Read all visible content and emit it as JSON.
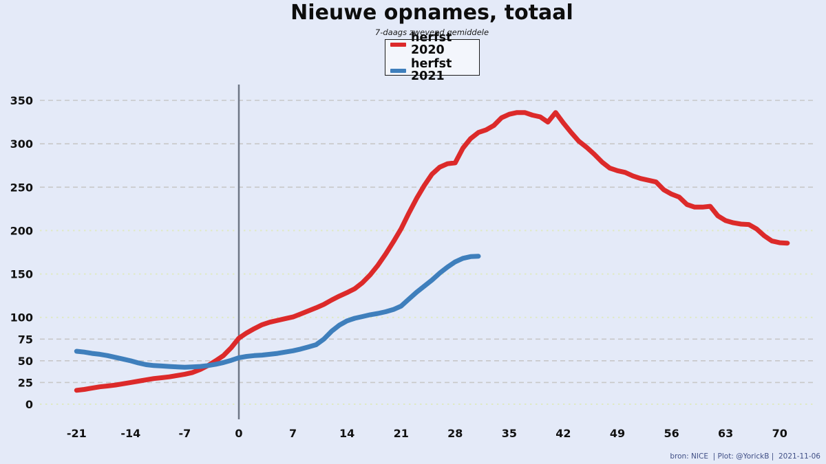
{
  "figure": {
    "title": "Nieuwe opnames, totaal",
    "subtitle": "7-daags zwevend gemiddele",
    "footer": "bron: NICE  | Plot: @YorickB |  2021-11-06",
    "background_color": "#e4eaf8"
  },
  "legend": {
    "position": "top-center",
    "items": [
      {
        "label": "herfst 2020",
        "color": "#dc2a2a"
      },
      {
        "label": "herfst 2021",
        "color": "#3f7fbc"
      }
    ]
  },
  "chart_data": {
    "type": "line",
    "title": "Nieuwe opnames, totaal",
    "subtitle": "7-daags zwevend gemiddele",
    "xlabel": "",
    "ylabel": "",
    "grid": true,
    "legend_position": "top-center",
    "legend_entries": [
      "herfst 2020",
      "herfst 2021"
    ],
    "xlim": [
      -25.7,
      75.1
    ],
    "ylim": [
      0,
      368
    ],
    "xticks": [
      -21,
      -14,
      -7,
      0,
      7,
      14,
      21,
      28,
      35,
      42,
      49,
      56,
      63,
      70
    ],
    "yticks": [
      0,
      25,
      50,
      75,
      100,
      150,
      200,
      250,
      300,
      350
    ],
    "highlight_gridlines": [
      0,
      100,
      150,
      200
    ],
    "zero_vline_x": 0,
    "series": [
      {
        "name": "herfst 2020",
        "color": "#dc2a2a",
        "x": [
          -21,
          -20,
          -19,
          -18,
          -17,
          -16,
          -15,
          -14,
          -13,
          -12,
          -11,
          -10,
          -9,
          -8,
          -7,
          -6,
          -5,
          -4,
          -3,
          -2,
          -1,
          0,
          1,
          2,
          3,
          4,
          5,
          6,
          7,
          8,
          9,
          10,
          11,
          12,
          13,
          14,
          15,
          16,
          17,
          18,
          19,
          20,
          21,
          22,
          23,
          24,
          25,
          26,
          27,
          28,
          29,
          30,
          31,
          32,
          33,
          34,
          35,
          36,
          37,
          38,
          39,
          40,
          41,
          42,
          43,
          44,
          45,
          46,
          47,
          48,
          49,
          50,
          51,
          52,
          53,
          54,
          55,
          56,
          57,
          58,
          59,
          60,
          61,
          62,
          63,
          64,
          65,
          66,
          67,
          68,
          69,
          70,
          71
        ],
        "values": [
          16,
          17,
          18.5,
          20,
          21,
          22,
          23.5,
          25,
          26.5,
          28,
          29.5,
          30.5,
          31.5,
          33,
          34.5,
          36.5,
          40,
          44.5,
          50,
          56,
          65,
          76,
          82,
          87,
          91.5,
          94.5,
          96.5,
          98.5,
          100.5,
          104,
          107.5,
          111,
          115,
          120,
          124.5,
          128.5,
          133,
          140,
          149,
          160,
          173,
          187,
          202,
          220,
          237,
          252,
          265,
          273,
          277,
          278,
          295,
          306,
          313,
          316,
          321,
          330,
          334,
          336,
          336,
          333,
          331,
          325,
          336,
          324,
          313,
          303,
          296,
          288,
          279,
          272,
          269,
          267,
          263,
          260,
          258,
          256,
          247,
          242,
          238.5,
          230,
          227,
          227,
          228,
          217,
          211.5,
          209,
          207.5,
          207,
          202,
          194,
          188,
          186,
          185.5
        ]
      },
      {
        "name": "herfst 2021",
        "color": "#3f7fbc",
        "x": [
          -21,
          -20,
          -19,
          -18,
          -17,
          -16,
          -15,
          -14,
          -13,
          -12,
          -11,
          -10,
          -9,
          -8,
          -7,
          -6,
          -5,
          -4,
          -3,
          -2,
          -1,
          0,
          1,
          2,
          3,
          4,
          5,
          6,
          7,
          8,
          9,
          10,
          11,
          12,
          13,
          14,
          15,
          16,
          17,
          18,
          19,
          20,
          21,
          22,
          23,
          24,
          25,
          26,
          27,
          28,
          29,
          30,
          31
        ],
        "values": [
          61,
          60,
          58.5,
          57.5,
          56,
          54,
          52,
          50,
          47.5,
          45.5,
          44.5,
          44,
          43.5,
          43,
          42.5,
          43,
          43.5,
          44.5,
          46,
          48,
          50.5,
          53.5,
          55,
          56,
          56.5,
          57.5,
          58.5,
          60,
          61.5,
          63.5,
          66,
          68.5,
          75,
          84,
          91,
          96,
          99,
          101,
          103,
          104.5,
          106.5,
          109,
          113,
          121,
          129,
          136,
          143,
          151,
          158,
          164,
          168,
          170,
          170.5
        ]
      }
    ]
  }
}
